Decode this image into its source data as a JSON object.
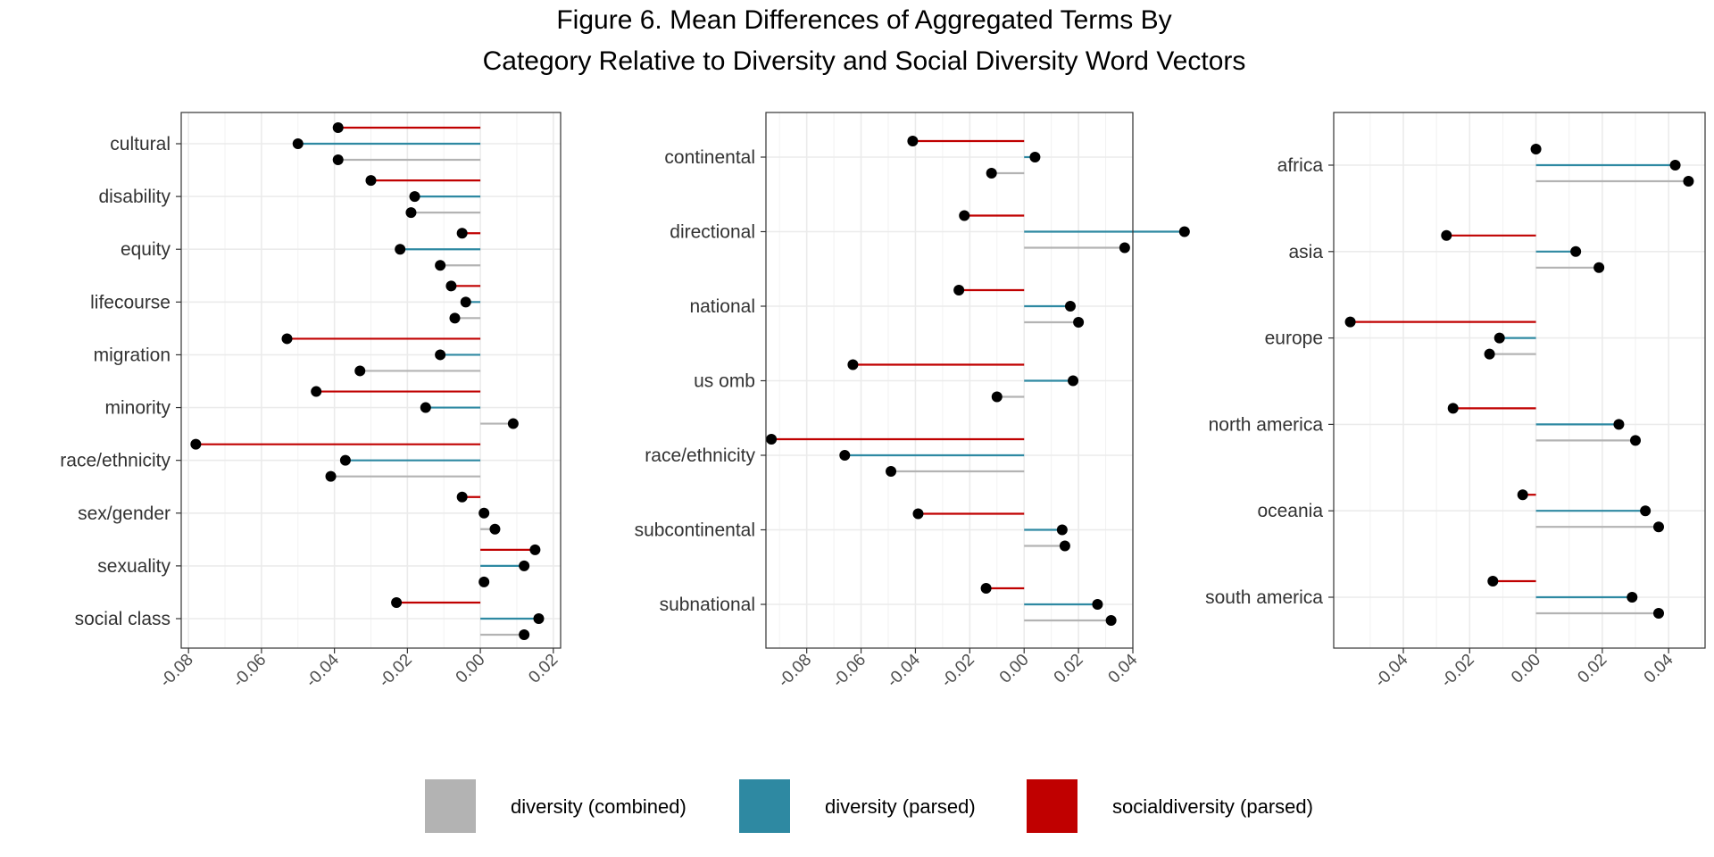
{
  "title_line1": "Figure 6. Mean Differences of Aggregated Terms By",
  "title_line2": "Category Relative to Diversity and Social Diversity Word Vectors",
  "chart_data": {
    "type": "lollipop",
    "title": "Figure 6. Mean Differences of Aggregated Terms By Category Relative to Diversity and Social Diversity Word Vectors",
    "legend_placement": "bottom",
    "grid": true,
    "series": [
      {
        "name": "diversity (combined)",
        "color": "#b3b3b3"
      },
      {
        "name": "diversity (parsed)",
        "color": "#2e89a2"
      },
      {
        "name": "socialdiversity (parsed)",
        "color": "#c00000"
      }
    ],
    "panels": [
      {
        "xlim": [
          -0.082,
          0.022
        ],
        "ticks": [
          -0.08,
          -0.06,
          -0.04,
          -0.02,
          0.0,
          0.02
        ],
        "tick_labels": [
          "-0.08",
          "-0.06",
          "-0.04",
          "-0.02",
          "0.00",
          "0.02"
        ],
        "categories": [
          "cultural",
          "disability",
          "equity",
          "lifecourse",
          "migration",
          "minority",
          "race/ethnicity",
          "sex/gender",
          "sexuality",
          "social class"
        ],
        "values": {
          "socialdiversity (parsed)": [
            -0.039,
            -0.03,
            -0.005,
            -0.008,
            -0.053,
            -0.045,
            -0.078,
            -0.005,
            0.015,
            -0.023
          ],
          "diversity (parsed)": [
            -0.05,
            -0.018,
            -0.022,
            -0.004,
            -0.011,
            -0.015,
            -0.037,
            0.001,
            0.012,
            0.016
          ],
          "diversity (combined)": [
            -0.039,
            -0.019,
            -0.011,
            -0.007,
            -0.033,
            0.009,
            -0.041,
            0.004,
            0.001,
            0.012
          ]
        }
      },
      {
        "xlim": [
          -0.095,
          0.04
        ],
        "ticks": [
          -0.08,
          -0.06,
          -0.04,
          -0.02,
          0.0,
          0.02,
          0.04
        ],
        "tick_labels": [
          "-0.08",
          "-0.06",
          "-0.04",
          "-0.02",
          "0.00",
          "0.02",
          "0.04"
        ],
        "categories": [
          "continental",
          "directional",
          "national",
          "us omb",
          "race/ethnicity",
          "subcontinental",
          "subnational"
        ],
        "values": {
          "socialdiversity (parsed)": [
            -0.041,
            -0.022,
            -0.024,
            -0.063,
            -0.093,
            -0.039,
            -0.014
          ],
          "diversity (parsed)": [
            0.004,
            0.059,
            0.017,
            0.018,
            -0.066,
            0.014,
            0.027
          ],
          "diversity (combined)": [
            -0.012,
            0.037,
            0.02,
            -0.01,
            -0.049,
            0.015,
            0.032
          ]
        }
      },
      {
        "xlim": [
          -0.061,
          0.051
        ],
        "ticks": [
          -0.04,
          -0.02,
          0.0,
          0.02,
          0.04
        ],
        "tick_labels": [
          "-0.04",
          "-0.02",
          "0.00",
          "0.02",
          "0.04"
        ],
        "categories": [
          "africa",
          "asia",
          "europe",
          "north america",
          "oceania",
          "south america"
        ],
        "values": {
          "socialdiversity (parsed)": [
            0.0,
            -0.027,
            -0.056,
            -0.025,
            -0.004,
            -0.013
          ],
          "diversity (parsed)": [
            0.042,
            0.012,
            -0.011,
            0.025,
            0.033,
            0.029
          ],
          "diversity (combined)": [
            0.046,
            0.019,
            -0.014,
            0.03,
            0.037,
            0.037
          ]
        }
      }
    ]
  }
}
